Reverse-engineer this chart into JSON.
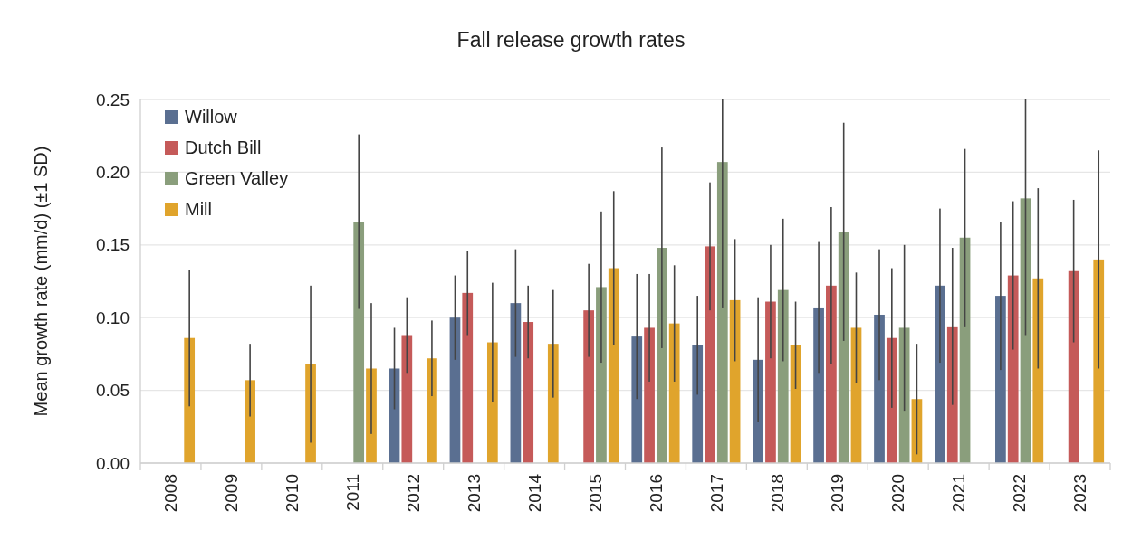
{
  "chart_data": {
    "type": "bar",
    "title": "Fall release growth rates",
    "ylabel": "Mean growth rate (mm/d) (±1 SD)",
    "categories": [
      "2008",
      "2009",
      "2010",
      "2011",
      "2012",
      "2013",
      "2014",
      "2015",
      "2016",
      "2017",
      "2018",
      "2019",
      "2020",
      "2021",
      "2022",
      "2023"
    ],
    "series": [
      {
        "name": "Willow",
        "color": "#5a6f91",
        "values": [
          null,
          null,
          null,
          null,
          0.065,
          0.1,
          0.11,
          null,
          0.087,
          0.081,
          0.071,
          0.107,
          0.102,
          0.122,
          0.115,
          null
        ],
        "errors": [
          null,
          null,
          null,
          null,
          0.028,
          0.029,
          0.037,
          null,
          0.043,
          0.034,
          0.043,
          0.045,
          0.045,
          0.053,
          0.051,
          null
        ]
      },
      {
        "name": "Dutch Bill",
        "color": "#c55a59",
        "values": [
          null,
          null,
          null,
          null,
          0.088,
          0.117,
          0.097,
          0.105,
          0.093,
          0.149,
          0.111,
          0.122,
          0.086,
          0.094,
          0.129,
          0.132
        ],
        "errors": [
          null,
          null,
          null,
          null,
          0.026,
          0.029,
          0.025,
          0.032,
          0.037,
          0.044,
          0.039,
          0.054,
          0.048,
          0.054,
          0.051,
          0.049
        ]
      },
      {
        "name": "Green Valley",
        "color": "#8a9e7c",
        "values": [
          null,
          null,
          null,
          0.166,
          null,
          null,
          null,
          0.121,
          0.148,
          0.207,
          0.119,
          0.159,
          0.093,
          0.155,
          0.182,
          null
        ],
        "errors": [
          null,
          null,
          null,
          0.06,
          null,
          null,
          null,
          0.052,
          0.069,
          [
            0.107,
            0.25
          ],
          0.049,
          0.075,
          0.057,
          0.061,
          [
            0.088,
            0.25
          ],
          null
        ]
      },
      {
        "name": "Mill",
        "color": "#e0a42c",
        "values": [
          0.086,
          0.057,
          0.068,
          0.065,
          0.072,
          0.083,
          0.082,
          0.134,
          0.096,
          0.112,
          0.081,
          0.093,
          0.044,
          null,
          0.127,
          0.14
        ],
        "errors": [
          0.047,
          0.025,
          0.054,
          0.045,
          0.026,
          0.041,
          0.037,
          0.053,
          0.04,
          0.042,
          0.03,
          0.038,
          0.038,
          null,
          0.062,
          0.075
        ]
      }
    ],
    "ylim": [
      0,
      0.25
    ],
    "yticks": [
      {
        "value": 0,
        "label": "0.00"
      },
      {
        "value": 0.05,
        "label": "0.05"
      },
      {
        "value": 0.1,
        "label": "0.10"
      },
      {
        "value": 0.15,
        "label": "0.15"
      },
      {
        "value": 0.2,
        "label": "0.20"
      },
      {
        "value": 0.25,
        "label": "0.25"
      }
    ],
    "grid": "y",
    "legend": "top left"
  }
}
